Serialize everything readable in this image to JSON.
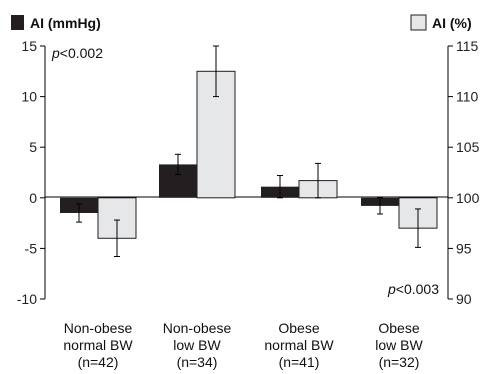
{
  "chart_data": {
    "type": "bar",
    "categories": [
      [
        "Non-obese",
        "normal BW",
        "(n=42)"
      ],
      [
        "Non-obese",
        "low BW",
        "(n=34)"
      ],
      [
        "Obese",
        "normal BW",
        "(n=41)"
      ],
      [
        "Obese",
        "low BW",
        "(n=32)"
      ]
    ],
    "series": [
      {
        "name": "AI (mmHg)",
        "axis": "left",
        "color": "#231f20",
        "values": [
          -1.5,
          3.3,
          1.1,
          -0.8
        ],
        "error": [
          0.9,
          1.0,
          1.1,
          0.8
        ]
      },
      {
        "name": "AI (%)",
        "axis": "right",
        "color": "#e6e7e8",
        "values": [
          96.0,
          112.5,
          101.7,
          97.0
        ],
        "error": [
          1.8,
          2.5,
          1.7,
          1.9
        ]
      }
    ],
    "y_left": {
      "ylim": [
        -10,
        15
      ],
      "ticks": [
        -10,
        -5,
        0,
        5,
        10,
        15
      ]
    },
    "y_right": {
      "ylim": [
        90,
        115
      ],
      "ticks": [
        90,
        95,
        100,
        105,
        110,
        115
      ]
    },
    "annotations": {
      "left": {
        "prefix": "p",
        "text": "<0.002"
      },
      "right": {
        "prefix": "p",
        "text": "<0.003"
      }
    },
    "legend": {
      "left": "AI (mmHg)",
      "right": "AI (%)"
    },
    "grid": false
  }
}
